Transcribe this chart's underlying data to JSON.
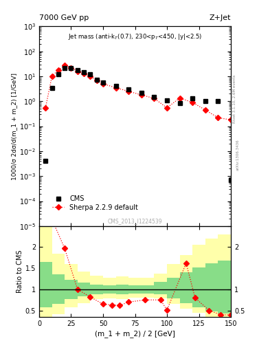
{
  "title_left": "7000 GeV pp",
  "title_right": "Z+Jet",
  "annotation": "Jet mass (anti-k$_T$(0.7), 230<p$_T$<450, |y|<2.5)",
  "watermark": "CMS_2013_I1224539",
  "right_label": "Rivet 3.1.10, 2.6M events",
  "arxiv_label": "arXiv:1306.3436",
  "xlabel": "(m_1 + m_2) / 2 [GeV]",
  "ylabel_main": "1000/σ 2dσ/d(m_1 + m_2) [1/GeV]",
  "ylabel_ratio": "Ratio to CMS",
  "cms_x": [
    5,
    10,
    15,
    20,
    25,
    30,
    35,
    40,
    45,
    50,
    60,
    70,
    80,
    90,
    100,
    110,
    120,
    130,
    140,
    150
  ],
  "cms_y": [
    0.004,
    3.5,
    12.0,
    22.0,
    22.0,
    18.0,
    15.0,
    12.0,
    7.5,
    5.5,
    4.0,
    3.0,
    2.2,
    1.5,
    1.1,
    0.85,
    1.3,
    1.0,
    1.0,
    0.0007
  ],
  "sherpa_x": [
    5,
    10,
    15,
    20,
    25,
    30,
    35,
    40,
    45,
    50,
    60,
    70,
    80,
    90,
    100,
    110,
    120,
    130,
    140,
    150
  ],
  "sherpa_y": [
    0.55,
    10.0,
    18.0,
    27.0,
    22.0,
    16.0,
    13.0,
    10.0,
    7.0,
    5.0,
    3.5,
    2.5,
    1.8,
    1.3,
    0.55,
    1.35,
    0.9,
    0.45,
    0.22,
    0.18
  ],
  "ratio_sherpa_x": [
    5,
    20,
    30,
    40,
    50,
    57,
    63,
    70,
    83,
    95,
    100,
    115,
    122,
    133,
    142,
    150
  ],
  "ratio_sherpa_y": [
    3.0,
    1.97,
    1.0,
    0.82,
    0.65,
    0.63,
    0.62,
    0.7,
    0.75,
    0.75,
    0.51,
    1.62,
    0.8,
    0.5,
    0.4,
    0.39
  ],
  "bin_edges": [
    0,
    10,
    20,
    30,
    40,
    50,
    60,
    70,
    80,
    90,
    100,
    110,
    120,
    130,
    140,
    150
  ],
  "yellow_lo": [
    0.35,
    0.42,
    0.57,
    0.68,
    0.77,
    0.78,
    0.77,
    0.8,
    0.8,
    0.78,
    0.65,
    0.55,
    0.45,
    0.35,
    0.27
  ],
  "yellow_hi": [
    2.5,
    1.85,
    1.6,
    1.42,
    1.32,
    1.28,
    1.3,
    1.28,
    1.28,
    1.38,
    1.6,
    1.82,
    2.05,
    2.2,
    2.3
  ],
  "green_lo": [
    0.58,
    0.65,
    0.77,
    0.84,
    0.88,
    0.9,
    0.88,
    0.9,
    0.9,
    0.88,
    0.78,
    0.68,
    0.58,
    0.48,
    0.43
  ],
  "green_hi": [
    1.65,
    1.35,
    1.23,
    1.16,
    1.12,
    1.1,
    1.12,
    1.1,
    1.1,
    1.18,
    1.28,
    1.4,
    1.52,
    1.62,
    1.68
  ],
  "xlim": [
    0,
    150
  ],
  "ylim_main": [
    1e-05,
    1000.0
  ],
  "ylim_ratio": [
    0.35,
    2.5
  ],
  "cms_color": "black",
  "sherpa_color": "red",
  "green_color": "#88dd88",
  "yellow_color": "#ffffaa",
  "background_color": "white"
}
